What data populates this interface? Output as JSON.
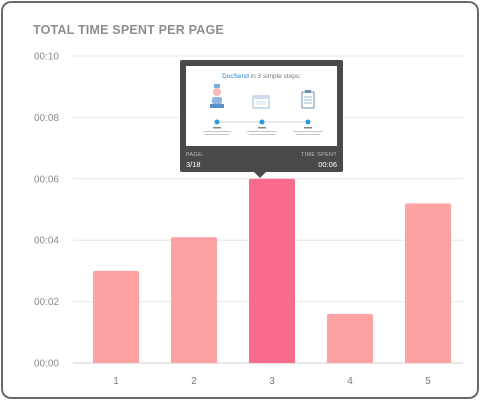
{
  "chart_data": {
    "type": "bar",
    "title": "TOTAL TIME SPENT PER PAGE",
    "xlabel": "",
    "ylabel": "",
    "categories": [
      "1",
      "2",
      "3",
      "4",
      "5"
    ],
    "values": [
      0.03,
      0.041,
      0.06,
      0.016,
      0.052
    ],
    "y_tick_labels": [
      "00:00",
      "00:02",
      "00:04",
      "00:06",
      "00:08",
      "00:10"
    ],
    "y_tick_values": [
      0,
      0.02,
      0.04,
      0.06,
      0.08,
      0.1
    ],
    "ylim": [
      0,
      0.1
    ],
    "grid": true,
    "highlighted_index": 2,
    "colors": {
      "bar": "#fea1a3",
      "bar_highlight": "#f96b8a",
      "grid": "#e6e6e6",
      "axis": "#cfcfcf"
    }
  },
  "tooltip": {
    "thumbnail": {
      "brand": "DocSend",
      "heading_rest": " in 3 simple steps:",
      "accent": "#2b9be0",
      "icons": [
        "person-upload-icon",
        "browser-window-icon",
        "clipboard-icon"
      ]
    },
    "page_label": "PAGE:",
    "page_value": "3/18",
    "time_label": "TIME SPENT",
    "time_value": "00:06"
  }
}
